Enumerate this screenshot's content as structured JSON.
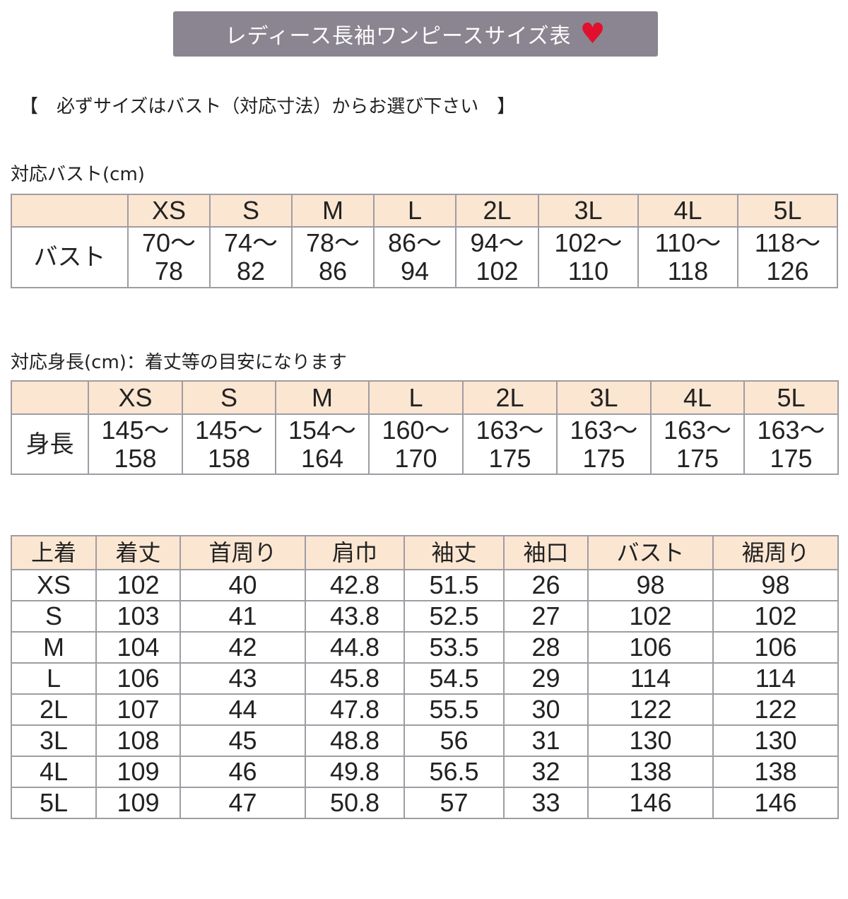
{
  "title": "レディース長袖ワンピースサイズ表",
  "title_icon": "heart-icon",
  "colors": {
    "title_bg": "#8a8591",
    "heart": "#e0102e",
    "header_bg": "#fbe6d2",
    "border": "#a09ca3"
  },
  "notice": "【　必ずサイズはバスト（対応寸法）からお選び下さい　】",
  "bust_table": {
    "caption": "対応バスト(cm)",
    "row_label": "バスト",
    "sizes": [
      "XS",
      "S",
      "M",
      "L",
      "2L",
      "3L",
      "4L",
      "5L"
    ],
    "ranges": [
      [
        "70～",
        "78"
      ],
      [
        "74～",
        "82"
      ],
      [
        "78～",
        "86"
      ],
      [
        "86～",
        "94"
      ],
      [
        "94～",
        "102"
      ],
      [
        "102～",
        "110"
      ],
      [
        "110～",
        "118"
      ],
      [
        "118～",
        "126"
      ]
    ]
  },
  "height_table": {
    "caption": "対応身長(cm)：着丈等の目安になります",
    "row_label": "身長",
    "sizes": [
      "XS",
      "S",
      "M",
      "L",
      "2L",
      "3L",
      "4L",
      "5L"
    ],
    "ranges": [
      [
        "145～",
        "158"
      ],
      [
        "145～",
        "158"
      ],
      [
        "154～",
        "164"
      ],
      [
        "160～",
        "170"
      ],
      [
        "163～",
        "175"
      ],
      [
        "163～",
        "175"
      ],
      [
        "163～",
        "175"
      ],
      [
        "163～",
        "175"
      ]
    ]
  },
  "measure_table": {
    "headers": [
      "上着",
      "着丈",
      "首周り",
      "肩巾",
      "袖丈",
      "袖口",
      "バスト",
      "裾周り"
    ],
    "rows": [
      [
        "XS",
        "102",
        "40",
        "42.8",
        "51.5",
        "26",
        "98",
        "98"
      ],
      [
        "S",
        "103",
        "41",
        "43.8",
        "52.5",
        "27",
        "102",
        "102"
      ],
      [
        "M",
        "104",
        "42",
        "44.8",
        "53.5",
        "28",
        "106",
        "106"
      ],
      [
        "L",
        "106",
        "43",
        "45.8",
        "54.5",
        "29",
        "114",
        "114"
      ],
      [
        "2L",
        "107",
        "44",
        "47.8",
        "55.5",
        "30",
        "122",
        "122"
      ],
      [
        "3L",
        "108",
        "45",
        "48.8",
        "56",
        "31",
        "130",
        "130"
      ],
      [
        "4L",
        "109",
        "46",
        "49.8",
        "56.5",
        "32",
        "138",
        "138"
      ],
      [
        "5L",
        "109",
        "47",
        "50.8",
        "57",
        "33",
        "146",
        "146"
      ]
    ]
  }
}
